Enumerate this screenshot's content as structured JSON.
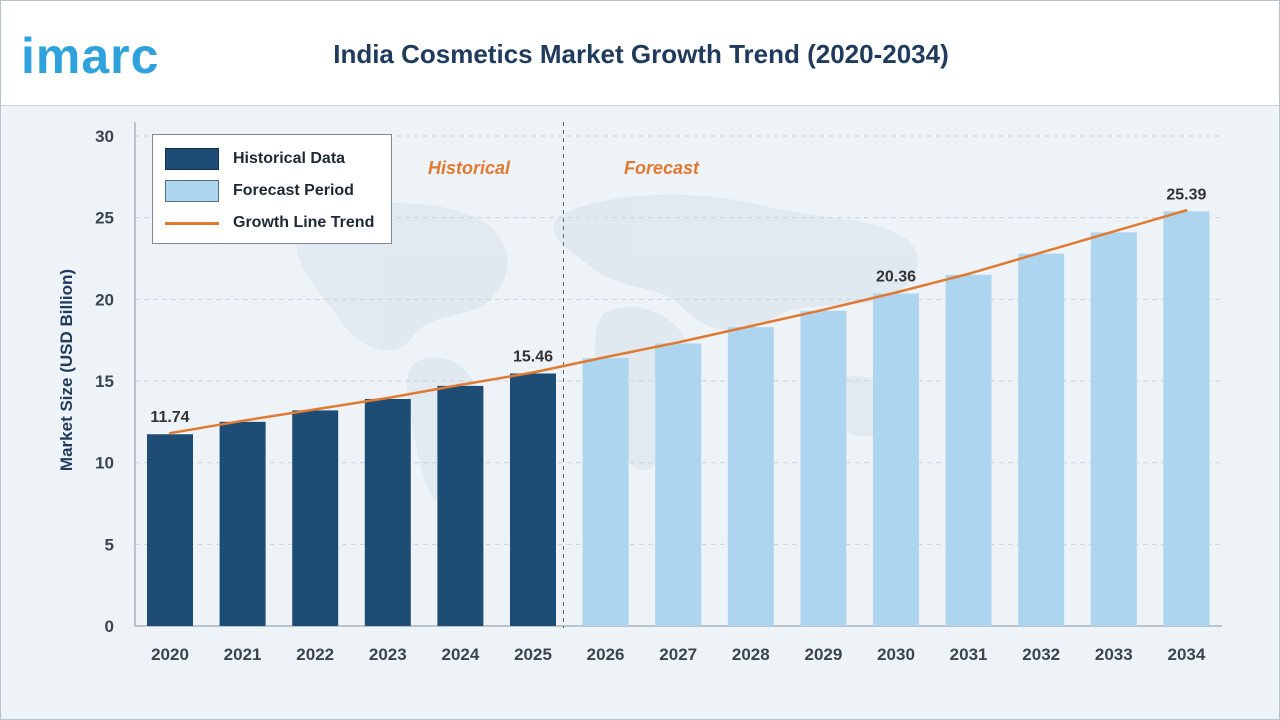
{
  "brand": {
    "logo_text": "imarc",
    "logo_color": "#2da2dd"
  },
  "header": {
    "title": "India Cosmetics Market Growth Trend (2020-2034)"
  },
  "colors": {
    "historical": "#1d4d74",
    "forecast": "#aed5ef",
    "trend": "#e07a32",
    "axis_text": "#3b4550",
    "label_text": "#333333"
  },
  "legend": {
    "historical_label": "Historical Data",
    "forecast_label": "Forecast Period",
    "trend_label": "Growth Line Trend"
  },
  "periods": {
    "historical": "Historical",
    "forecast": "Forecast"
  },
  "chart_data": {
    "type": "bar",
    "ylabel": "Market Size (USD Billion)",
    "xlabel": "",
    "ylim": [
      0,
      30
    ],
    "yticks": [
      0,
      5,
      10,
      15,
      20,
      25,
      30
    ],
    "grid": true,
    "legend_position": "top-left",
    "categories": [
      "2020",
      "2021",
      "2022",
      "2023",
      "2024",
      "2025",
      "2026",
      "2027",
      "2028",
      "2029",
      "2030",
      "2031",
      "2032",
      "2033",
      "2034"
    ],
    "series": [
      {
        "name": "Historical Data",
        "values": [
          11.74,
          12.5,
          13.2,
          13.9,
          14.7,
          15.46,
          null,
          null,
          null,
          null,
          null,
          null,
          null,
          null,
          null
        ]
      },
      {
        "name": "Forecast Period",
        "values": [
          null,
          null,
          null,
          null,
          null,
          null,
          16.4,
          17.3,
          18.3,
          19.3,
          20.36,
          21.5,
          22.8,
          24.1,
          25.39
        ]
      },
      {
        "name": "Growth Line Trend",
        "values": [
          11.74,
          12.5,
          13.2,
          13.9,
          14.7,
          15.46,
          16.4,
          17.3,
          18.3,
          19.3,
          20.36,
          21.5,
          22.8,
          24.1,
          25.39
        ]
      }
    ],
    "data_labels": [
      {
        "category": "2020",
        "text": "11.74"
      },
      {
        "category": "2025",
        "text": "15.46"
      },
      {
        "category": "2030",
        "text": "20.36"
      },
      {
        "category": "2034",
        "text": "25.39"
      }
    ]
  }
}
